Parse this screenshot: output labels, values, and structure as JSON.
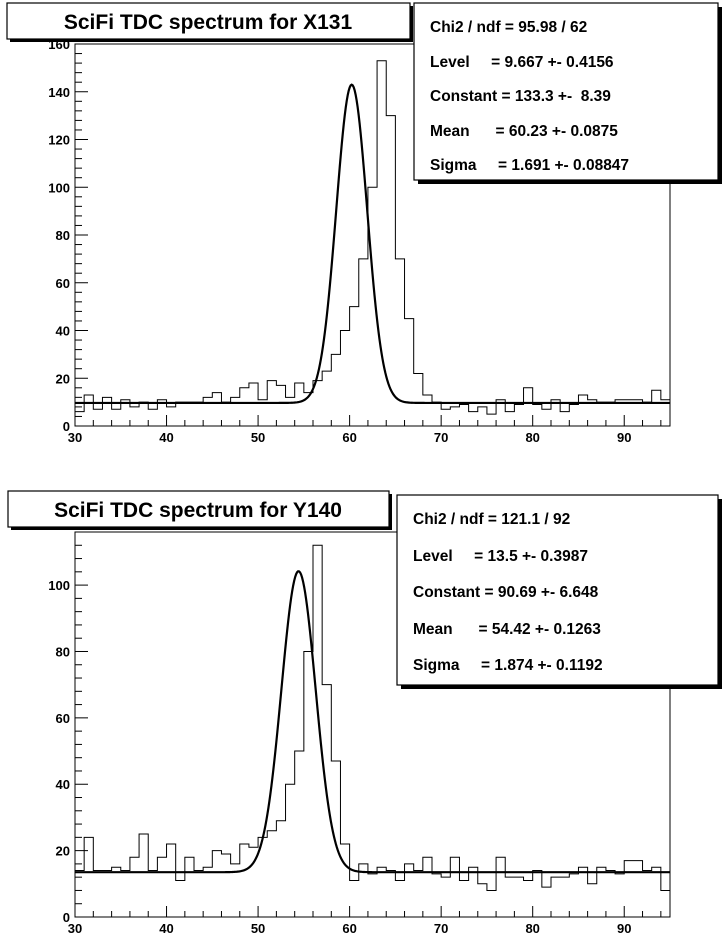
{
  "panels": [
    {
      "title": "SciFi TDC spectrum for X131",
      "stats": [
        {
          "label": "Chi2 / ndf = ",
          "value": "95.98 / 62"
        },
        {
          "label": "Level     = ",
          "value": "9.667 +- 0.4156"
        },
        {
          "label": "Constant = ",
          "value": "133.3 +-  8.39"
        },
        {
          "label": "Mean      = ",
          "value": "60.23 +- 0.0875"
        },
        {
          "label": "Sigma     = ",
          "value": "1.691 +- 0.08847"
        }
      ]
    },
    {
      "title": "SciFi TDC spectrum for Y140",
      "stats": [
        {
          "label": "Chi2 / ndf = ",
          "value": "121.1 / 92"
        },
        {
          "label": "Level     = ",
          "value": "13.5 +- 0.3987"
        },
        {
          "label": "Constant = ",
          "value": "90.69 +- 6.648"
        },
        {
          "label": "Mean      = ",
          "value": "54.42 +- 0.1263"
        },
        {
          "label": "Sigma     = ",
          "value": "1.874 +- 0.1192"
        }
      ]
    }
  ],
  "chart_data": [
    {
      "type": "step",
      "title": "SciFi TDC spectrum for X131",
      "xlim": [
        30,
        95
      ],
      "ylim": [
        0,
        160
      ],
      "bin_width": 1,
      "x_ticks": [
        30,
        40,
        50,
        60,
        70,
        80,
        90
      ],
      "y_ticks": [
        0,
        20,
        40,
        60,
        80,
        100,
        120,
        140,
        160
      ],
      "fit": {
        "function": "gaus+pol0",
        "level": 9.667,
        "constant": 133.3,
        "mean": 60.23,
        "sigma": 1.691
      },
      "bins_start": 30,
      "values": [
        6,
        13,
        7,
        12,
        7,
        11,
        8,
        10,
        7,
        11,
        8,
        10,
        10,
        10,
        12,
        14,
        10,
        12,
        16,
        18,
        11,
        19,
        17,
        12,
        18,
        14,
        19,
        23,
        30,
        40,
        50,
        70,
        100,
        153,
        130,
        70,
        45,
        22,
        13,
        10,
        7,
        8,
        9,
        6,
        8,
        5,
        11,
        6,
        9,
        16,
        9,
        7,
        11,
        6,
        9,
        13,
        11,
        10,
        10,
        11,
        11,
        11,
        10,
        15,
        11
      ]
    },
    {
      "type": "step",
      "title": "SciFi TDC spectrum for Y140",
      "xlim": [
        30,
        95
      ],
      "ylim": [
        0,
        116
      ],
      "bin_width": 1,
      "x_ticks": [
        30,
        40,
        50,
        60,
        70,
        80,
        90
      ],
      "y_ticks": [
        0,
        20,
        40,
        60,
        80,
        100
      ],
      "fit": {
        "function": "gaus+pol0",
        "level": 13.5,
        "constant": 90.69,
        "mean": 54.42,
        "sigma": 1.874
      },
      "bins_start": 30,
      "values": [
        14,
        24,
        14,
        14,
        15,
        14,
        18,
        25,
        14,
        18,
        22,
        11,
        18,
        14,
        15,
        20,
        19,
        16,
        22,
        21,
        24,
        26,
        29,
        40,
        50,
        80,
        112,
        70,
        47,
        22,
        11,
        16,
        13,
        15,
        14,
        11,
        16,
        14,
        18,
        13,
        12,
        18,
        11,
        15,
        10,
        8,
        18,
        12,
        12,
        11,
        14,
        9,
        12,
        12,
        13,
        15,
        10,
        15,
        14,
        13,
        17,
        17,
        14,
        15,
        8
      ]
    }
  ]
}
